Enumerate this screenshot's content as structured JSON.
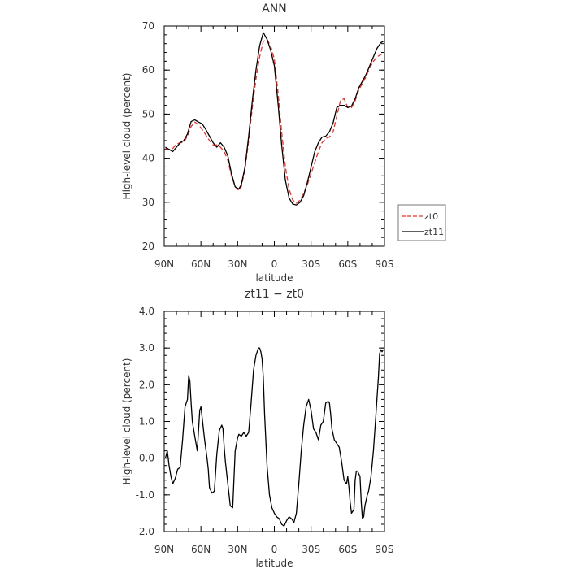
{
  "chart_data": [
    {
      "type": "line",
      "title": "ANN",
      "xlabel": "latitude",
      "ylabel": "High-level cloud (percent)",
      "xlim": [
        90,
        -90
      ],
      "ylim": [
        20,
        70
      ],
      "xticks": [
        {
          "v": 90,
          "label": "90N"
        },
        {
          "v": 60,
          "label": "60N"
        },
        {
          "v": 30,
          "label": "30N"
        },
        {
          "v": 0,
          "label": "0"
        },
        {
          "v": -30,
          "label": "30S"
        },
        {
          "v": -60,
          "label": "60S"
        },
        {
          "v": -90,
          "label": "90S"
        }
      ],
      "yticks": [
        {
          "v": 20,
          "label": "20"
        },
        {
          "v": 30,
          "label": "30"
        },
        {
          "v": 40,
          "label": "40"
        },
        {
          "v": 50,
          "label": "50"
        },
        {
          "v": 60,
          "label": "60"
        },
        {
          "v": 70,
          "label": "70"
        }
      ],
      "legend_position": "outside-right",
      "series": [
        {
          "name": "zt0",
          "color": "#e8312b",
          "dash": "dashed",
          "x": [
            89,
            86,
            83,
            80,
            77,
            74,
            71,
            68,
            65,
            62,
            59,
            56,
            53,
            50,
            47,
            44,
            41,
            38,
            35,
            32,
            29,
            27,
            24,
            21,
            18,
            15,
            12,
            9,
            6,
            3,
            0,
            -3,
            -6,
            -9,
            -12,
            -15,
            -18,
            -21,
            -24,
            -27,
            -30,
            -33,
            -36,
            -39,
            -42,
            -45,
            -48,
            -51,
            -54,
            -57,
            -60,
            -63,
            -66,
            -69,
            -72,
            -75,
            -78,
            -81,
            -84,
            -87,
            -89
          ],
          "y": [
            42.3,
            42.0,
            42.2,
            43.2,
            43.5,
            43.6,
            45.0,
            47.2,
            48.2,
            47.6,
            46.5,
            45.3,
            44.0,
            43.0,
            43.0,
            42.5,
            41.5,
            39.5,
            36.0,
            33.5,
            32.7,
            33.5,
            37.5,
            44.0,
            51.5,
            58.0,
            63.0,
            66.5,
            67.0,
            65.5,
            62.5,
            55.0,
            46.0,
            38.0,
            33.0,
            30.5,
            29.8,
            30.5,
            32.0,
            34.0,
            36.5,
            39.0,
            41.5,
            43.5,
            44.5,
            44.8,
            46.0,
            49.5,
            53.0,
            53.5,
            51.5,
            51.5,
            53.0,
            55.5,
            57.0,
            58.5,
            60.5,
            62.0,
            63.0,
            63.5,
            63.8
          ]
        },
        {
          "name": "zt11",
          "color": "#000000",
          "dash": "solid",
          "x": [
            89,
            86,
            83,
            80,
            77,
            74,
            71,
            68,
            65,
            62,
            59,
            56,
            53,
            50,
            47,
            44,
            41,
            38,
            35,
            32,
            29,
            27,
            24,
            21,
            18,
            15,
            12,
            9,
            6,
            3,
            0,
            -3,
            -6,
            -9,
            -12,
            -15,
            -18,
            -21,
            -24,
            -27,
            -30,
            -33,
            -36,
            -39,
            -42,
            -45,
            -48,
            -51,
            -54,
            -57,
            -60,
            -63,
            -66,
            -69,
            -72,
            -75,
            -78,
            -81,
            -84,
            -87,
            -89
          ],
          "y": [
            42.5,
            42.0,
            41.5,
            42.5,
            43.5,
            44.0,
            45.5,
            48.3,
            48.7,
            48.2,
            47.8,
            46.5,
            45.0,
            43.5,
            42.5,
            43.5,
            42.5,
            40.5,
            36.5,
            33.5,
            33.0,
            34.0,
            38.0,
            45.0,
            53.0,
            60.0,
            65.5,
            68.5,
            67.0,
            64.5,
            61.0,
            52.5,
            43.0,
            35.0,
            31.0,
            29.6,
            29.4,
            30.0,
            31.5,
            34.5,
            38.0,
            41.5,
            43.5,
            44.8,
            45.0,
            46.0,
            48.0,
            51.5,
            52.0,
            52.0,
            51.5,
            51.8,
            53.5,
            56.0,
            57.5,
            59.0,
            61.0,
            63.0,
            65.0,
            66.2,
            66.5
          ]
        }
      ]
    },
    {
      "type": "line",
      "title": "zt11 − zt0",
      "xlabel": "latitude",
      "ylabel": "High-level cloud (percent)",
      "xlim": [
        90,
        -90
      ],
      "ylim": [
        -2.0,
        4.0
      ],
      "xticks": [
        {
          "v": 90,
          "label": "90N"
        },
        {
          "v": 60,
          "label": "60N"
        },
        {
          "v": 30,
          "label": "30N"
        },
        {
          "v": 0,
          "label": "0"
        },
        {
          "v": -30,
          "label": "30S"
        },
        {
          "v": -60,
          "label": "60S"
        },
        {
          "v": -90,
          "label": "90S"
        }
      ],
      "yticks": [
        {
          "v": -2.0,
          "label": "-2.0"
        },
        {
          "v": -1.0,
          "label": "-1.0"
        },
        {
          "v": 0.0,
          "label": "0.0"
        },
        {
          "v": 1.0,
          "label": "1.0"
        },
        {
          "v": 2.0,
          "label": "2.0"
        },
        {
          "v": 3.0,
          "label": "3.0"
        },
        {
          "v": 4.0,
          "label": "4.0"
        }
      ],
      "series": [
        {
          "color": "#000000",
          "dash": "solid",
          "x": [
            89,
            87.5,
            86,
            84.5,
            83,
            81,
            79,
            77,
            75,
            73,
            71,
            70,
            69,
            68,
            67,
            65,
            63,
            61,
            60,
            59,
            57,
            55,
            54,
            53,
            51,
            49,
            47,
            45,
            43,
            42,
            41,
            40,
            38,
            36,
            34,
            32,
            30,
            29,
            27,
            25,
            23,
            21,
            19,
            17,
            15,
            13,
            12,
            11,
            10,
            9,
            8,
            6,
            4,
            2,
            0,
            -2,
            -4,
            -6,
            -8,
            -10,
            -12,
            -14,
            -16,
            -18,
            -20,
            -22,
            -24,
            -26,
            -28,
            -30,
            -32,
            -34,
            -36,
            -38,
            -40,
            -42,
            -44,
            -45,
            -46,
            -47,
            -49,
            -51,
            -53,
            -55,
            -57,
            -59,
            -60,
            -61,
            -62,
            -63,
            -65,
            -66,
            -67,
            -68,
            -70,
            -71,
            -72,
            -73,
            -74,
            -76,
            -77,
            -79,
            -81,
            -83,
            -85,
            -86,
            -87,
            -88,
            -89
          ],
          "y": [
            0.0,
            0.2,
            -0.2,
            -0.5,
            -0.7,
            -0.55,
            -0.3,
            -0.25,
            0.5,
            1.4,
            1.6,
            2.25,
            2.1,
            1.5,
            1.0,
            0.6,
            0.2,
            1.3,
            1.4,
            1.1,
            0.5,
            0.0,
            -0.3,
            -0.8,
            -0.95,
            -0.9,
            0.1,
            0.75,
            0.9,
            0.8,
            0.3,
            -0.1,
            -0.7,
            -1.3,
            -1.35,
            0.2,
            0.55,
            0.65,
            0.6,
            0.7,
            0.6,
            0.7,
            1.5,
            2.4,
            2.8,
            3.0,
            3.0,
            2.9,
            2.7,
            2.2,
            1.2,
            -0.2,
            -1.0,
            -1.35,
            -1.5,
            -1.6,
            -1.65,
            -1.8,
            -1.85,
            -1.7,
            -1.6,
            -1.65,
            -1.75,
            -1.5,
            -0.7,
            0.2,
            0.9,
            1.4,
            1.6,
            1.3,
            0.8,
            0.7,
            0.5,
            0.9,
            1.0,
            1.5,
            1.55,
            1.5,
            1.2,
            0.8,
            0.5,
            0.4,
            0.3,
            -0.1,
            -0.6,
            -0.7,
            -0.5,
            -0.8,
            -1.2,
            -1.5,
            -1.4,
            -0.6,
            -0.35,
            -0.35,
            -0.5,
            -1.2,
            -1.65,
            -1.6,
            -1.3,
            -1.0,
            -0.9,
            -0.5,
            0.2,
            1.2,
            2.2,
            2.85,
            2.95,
            2.9,
            2.95
          ]
        }
      ]
    }
  ]
}
